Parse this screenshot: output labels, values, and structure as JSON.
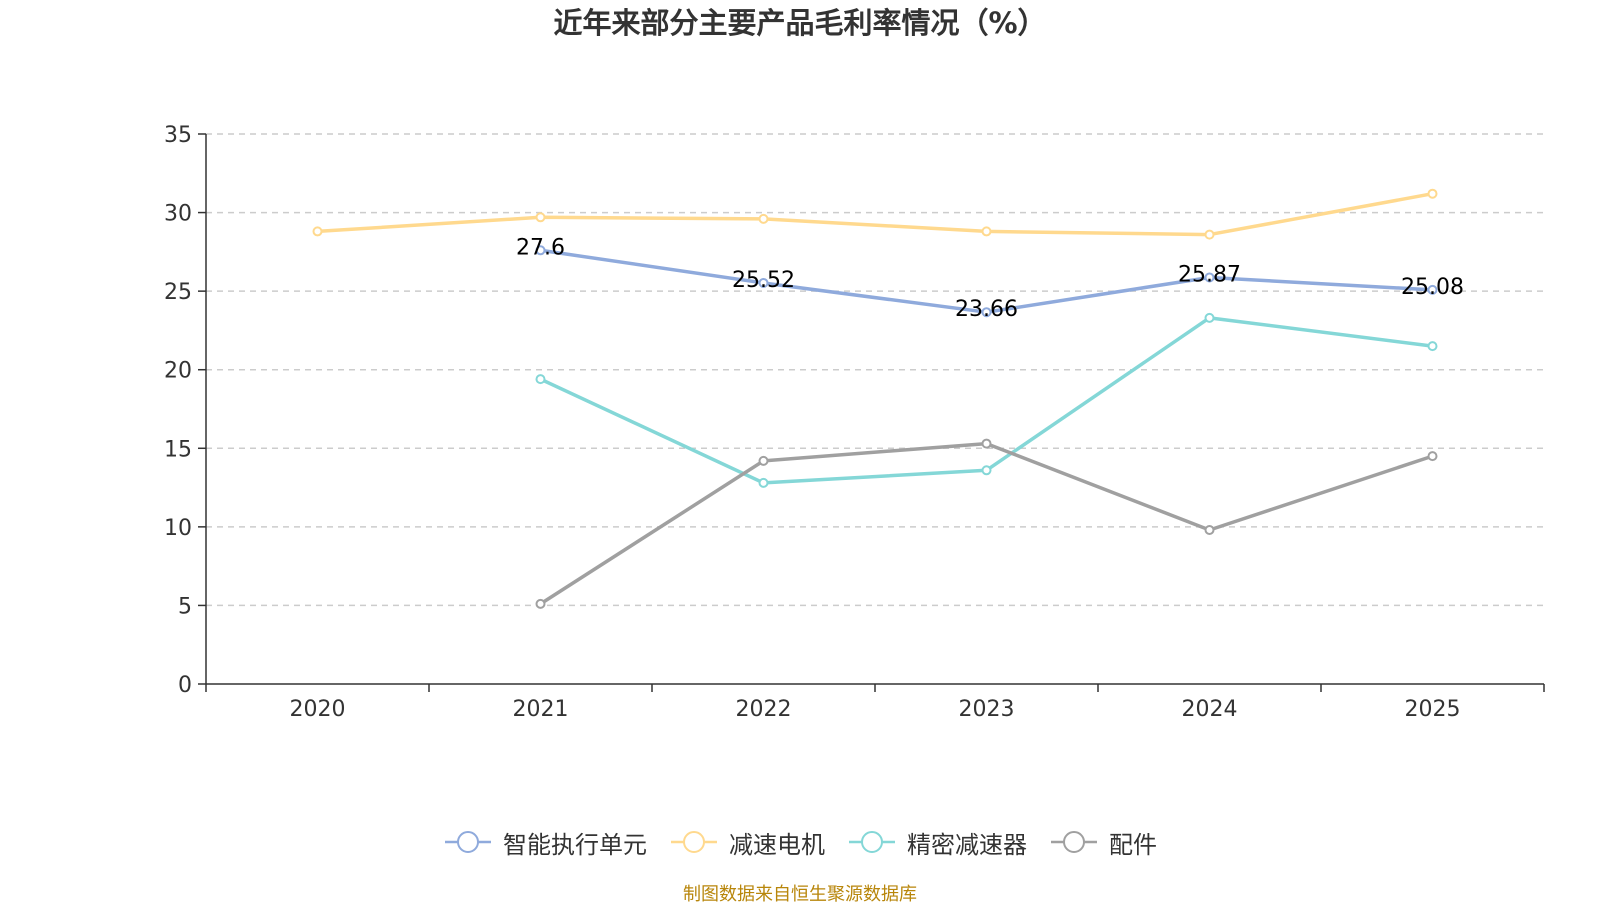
{
  "chart_data": {
    "type": "line",
    "title": "近年来部分主要产品毛利率情况（%）",
    "categories": [
      "2020",
      "2021",
      "2022",
      "2023",
      "2024",
      "2025"
    ],
    "ylim": [
      0,
      35
    ],
    "yticks": [
      0,
      5,
      10,
      15,
      20,
      25,
      30,
      35
    ],
    "grid": true,
    "legend_position": "bottom-center",
    "series": [
      {
        "name": "智能执行单元",
        "color": "#8FAADC",
        "values": [
          null,
          27.6,
          25.52,
          23.66,
          25.87,
          25.08
        ],
        "data_labels": [
          null,
          "27.6",
          "25.52",
          "23.66",
          "25.87",
          "25.08"
        ]
      },
      {
        "name": "减速电机",
        "color": "#FFD98E",
        "values": [
          28.8,
          29.7,
          29.6,
          28.8,
          28.6,
          31.2
        ],
        "data_labels": null
      },
      {
        "name": "精密减速器",
        "color": "#84D7D7",
        "values": [
          null,
          19.4,
          12.8,
          13.6,
          23.3,
          21.5
        ],
        "data_labels": null
      },
      {
        "name": "配件",
        "color": "#A0A0A0",
        "values": [
          null,
          5.1,
          14.2,
          15.3,
          9.8,
          14.5
        ],
        "data_labels": null
      }
    ]
  },
  "source_note": "制图数据来自恒生聚源数据库"
}
